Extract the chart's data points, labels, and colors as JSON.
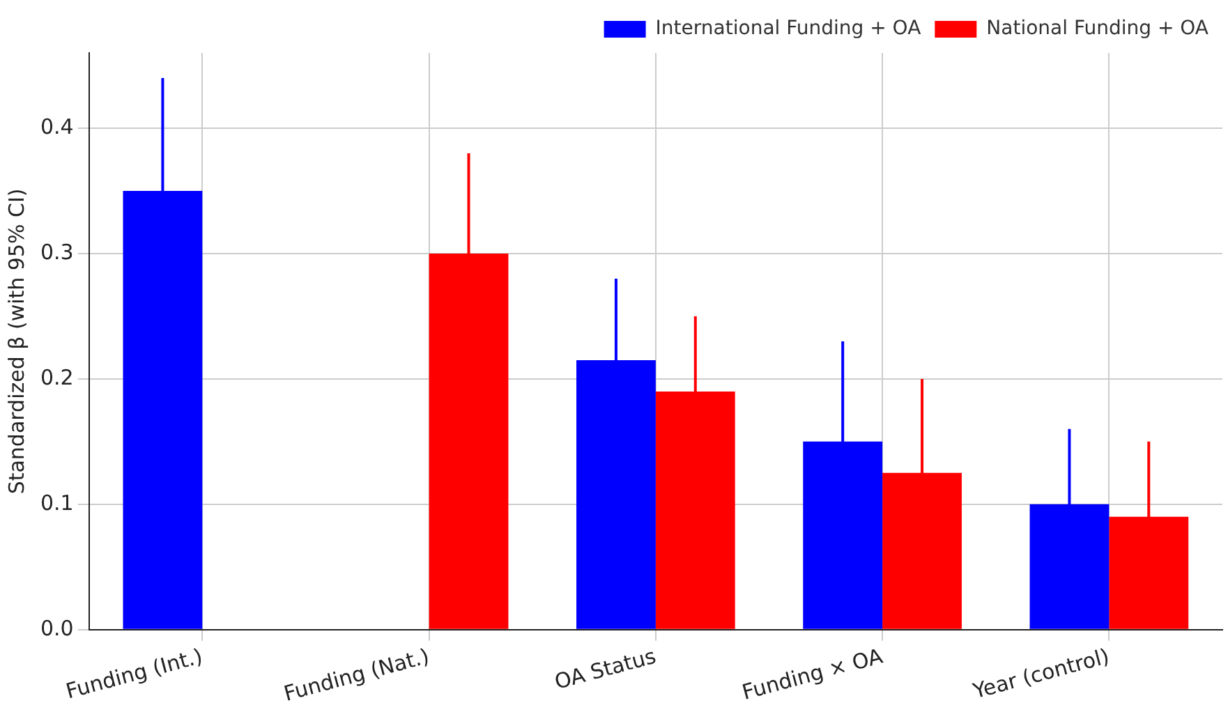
{
  "chart_data": {
    "type": "bar",
    "ylabel": "Standardized β (with 95% CI)",
    "categories": [
      "Funding (Int.)",
      "Funding (Nat.)",
      "OA Status",
      "Funding × OA",
      "Year (control)"
    ],
    "series": [
      {
        "name": "International Funding + OA",
        "color": "#0000ff",
        "values": [
          0.35,
          null,
          0.215,
          0.15,
          0.1
        ],
        "errors": [
          0.09,
          null,
          0.065,
          0.08,
          0.06
        ]
      },
      {
        "name": "National Funding + OA",
        "color": "#ff0000",
        "values": [
          null,
          0.3,
          0.19,
          0.125,
          0.09
        ],
        "errors": [
          null,
          0.08,
          0.06,
          0.075,
          0.06
        ]
      }
    ],
    "ylim": [
      0,
      0.46
    ],
    "yticks": [
      {
        "value": 0,
        "label": "0.0"
      },
      0.1,
      0.2,
      0.3,
      0.4
    ],
    "grid": true,
    "legend": "top right"
  }
}
